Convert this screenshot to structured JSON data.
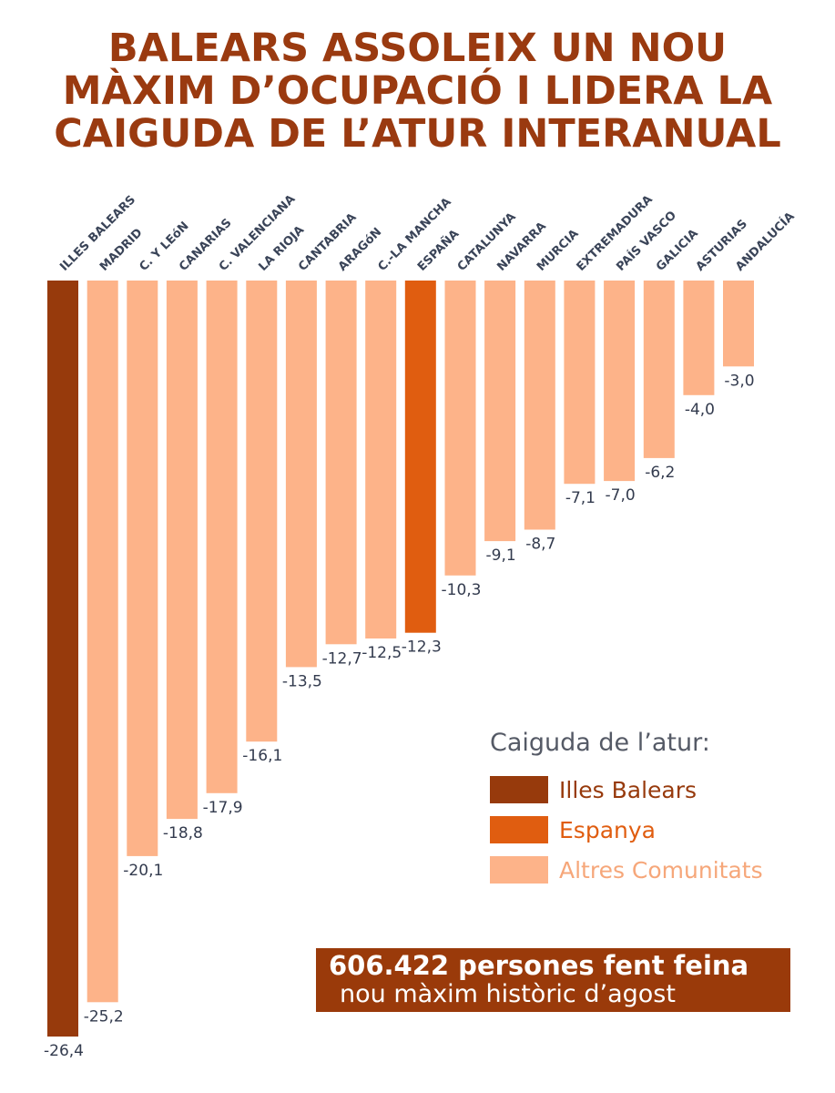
{
  "title_lines": [
    "BALEARS ASSOLEIX UN NOU",
    "MÀXIM D’OCUPACIÓ I LIDERA LA",
    "CAIGUDA DE L’ATUR INTERANUAL"
  ],
  "chart_data": {
    "type": "bar",
    "title": "BALEARS ASSOLEIX UN NOU MÀXIM D’OCUPACIÓ I LIDERA LA CAIGUDA DE L’ATUR INTERANUAL",
    "categories": [
      "ILLES BALEARS",
      "MADRID",
      "C. Y LEóN",
      "CANARIAS",
      "C. VALENCIANA",
      "LA RIOJA",
      "CANTABRIA",
      "ARAGóN",
      "C.-LA MANCHA",
      "ESPAÑA",
      "CATALUNYA",
      "NAVARRA",
      "MURCIA",
      "EXTREMADURA",
      "PAÍS VASCO",
      "GALICIA",
      "ASTURIAS",
      "ANDALUCÍA"
    ],
    "values": [
      -26.4,
      -25.2,
      -20.1,
      -18.8,
      -17.9,
      -16.1,
      -13.5,
      -12.7,
      -12.5,
      -12.3,
      -10.3,
      -9.1,
      -8.7,
      -7.1,
      -7.0,
      -6.2,
      -4.0,
      -3.0
    ],
    "value_labels": [
      "-26,4",
      "-25,2",
      "-20,1",
      "-18,8",
      "-17,9",
      "-16,1",
      "-13,5",
      "-12,7",
      "-12,5",
      "-12,3",
      "-10,3",
      "-9,1",
      "-8,7",
      "-7,1",
      "-7,0",
      "-6,2",
      "-4,0",
      "-3,0"
    ],
    "groups": [
      "balears",
      "altres",
      "altres",
      "altres",
      "altres",
      "altres",
      "altres",
      "altres",
      "altres",
      "espanya",
      "altres",
      "altres",
      "altres",
      "altres",
      "altres",
      "altres",
      "altres",
      "altres"
    ],
    "xlabel": "",
    "ylabel": "",
    "ylim": [
      -26.4,
      0
    ],
    "grid": false,
    "legend_position": "bottom-right"
  },
  "legend": {
    "title": "Caiguda de l’atur:",
    "items": [
      {
        "label": "Illes Balears",
        "color": "#973a0c"
      },
      {
        "label": "Espanya",
        "color": "#e05d10"
      },
      {
        "label": "Altres Comunitats",
        "color": "#fdb389"
      }
    ]
  },
  "colors": {
    "balears": "#973a0c",
    "espanya": "#e05d10",
    "altres": "#fdb389",
    "title": "#9a3a10",
    "banner": "#9a3a0a"
  },
  "banner": {
    "line1": "606.422 persones fent feina",
    "line2": "nou màxim històric d’agost"
  }
}
